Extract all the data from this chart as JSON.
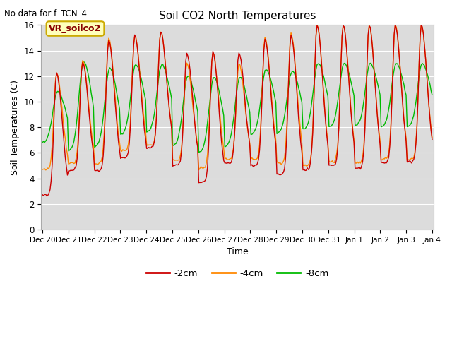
{
  "title": "Soil CO2 North Temperatures",
  "ylabel": "Soil Temperatures (C)",
  "xlabel": "Time",
  "no_data_text": "No data for f_TCN_4",
  "box_label": "VR_soilco2",
  "ylim": [
    0,
    16
  ],
  "yticks": [
    0,
    2,
    4,
    6,
    8,
    10,
    12,
    14,
    16
  ],
  "background_color": "#dcdcdc",
  "legend_entries": [
    "-2cm",
    "-4cm",
    "-8cm"
  ],
  "line_colors": [
    "#cc0000",
    "#ff8800",
    "#00bb00"
  ],
  "x_tick_labels": [
    "Dec 20",
    "Dec 21",
    "Dec 22",
    "Dec 23",
    "Dec 24",
    "Dec 25",
    "Dec 26",
    "Dec 27",
    "Dec 28",
    "Dec 29",
    "Dec 30",
    "Dec 31",
    "Jan 1",
    "Jan 2",
    "Jan 3",
    "Jan 4"
  ],
  "n_days": 15,
  "pts_per_day": 24,
  "figsize": [
    6.4,
    4.8
  ],
  "dpi": 100
}
